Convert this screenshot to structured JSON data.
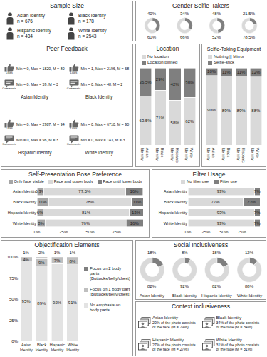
{
  "chart_data": [
    {
      "type": "pie",
      "title": "Gender Selfie-Takers",
      "series": [
        {
          "color": "#7f7f7f",
          "values": [
            40,
            34,
            48,
            21.5
          ],
          "value_labels": [
            "40%",
            "34%",
            "48%",
            "21.5%"
          ]
        },
        {
          "color": "#d9d9d9",
          "values": [
            60,
            66,
            52,
            78.5
          ],
          "value_labels": [
            "60%",
            "66%",
            "52%",
            "78.5%"
          ]
        }
      ]
    },
    {
      "type": "bar",
      "title": "Location",
      "stacked": true,
      "data_labels": true,
      "tick_labels": "x",
      "categories": [
        "Asian Identity",
        "Black Identity",
        "Hispanic Identity",
        "White Identity"
      ],
      "ylim": [
        0,
        100
      ],
      "series": [
        {
          "name": "No location",
          "color": "#d9d9d9",
          "values": [
            63.5,
            71,
            58,
            62
          ],
          "value_labels": [
            "63.5%",
            "71%",
            "58%",
            "62%"
          ]
        },
        {
          "name": "Location pinned",
          "color": "#7f7f7f",
          "values": [
            36.5,
            29,
            42,
            38
          ],
          "value_labels": [
            "36.5%",
            "29%",
            "42%",
            "38%"
          ]
        }
      ]
    },
    {
      "type": "bar",
      "title": "Selfie-Taking Equipment",
      "stacked": true,
      "data_labels": true,
      "tick_labels": "x",
      "categories": [
        "Asian Identity",
        "Black Identity",
        "Hispanic Identity",
        "White Identity"
      ],
      "ylim": [
        0,
        100
      ],
      "series": [
        {
          "name": "Nothing || Mirror",
          "color": "#d9d9d9",
          "values": [
            90,
            89,
            89,
            88
          ],
          "value_labels": [
            "90%",
            "89%",
            "89%",
            "88%"
          ]
        },
        {
          "name": "Selfie-stick",
          "color": "#7f7f7f",
          "values": [
            10,
            11,
            11,
            12
          ],
          "value_labels": [
            "10%",
            "11%",
            "11%",
            "12%"
          ]
        }
      ]
    },
    {
      "type": "bar",
      "title": "Self-Presentation Pose Preference",
      "orientation": "horizontal",
      "stacked": true,
      "data_labels": true,
      "categories": [
        "Asian Identity",
        "Black Identity",
        "Hispanic Identity",
        "White Identity"
      ],
      "xlim": [
        0,
        100
      ],
      "xticks": [
        {
          "value": 0,
          "label": "0%"
        },
        {
          "value": 25,
          "label": "25%"
        },
        {
          "value": 50,
          "label": "50%"
        },
        {
          "value": 75,
          "label": "75%"
        },
        {
          "value": 100,
          "label": "100%"
        }
      ],
      "series": [
        {
          "name": "Only face visible",
          "color": "#a6a6a6",
          "values": [
            6.3,
            11,
            6,
            8
          ],
          "value_labels": [
            "6.3%",
            "11%",
            "6%",
            "8%"
          ]
        },
        {
          "name": "Face and upper body",
          "color": "#d9d9d9",
          "values": [
            77.5,
            78,
            81,
            76
          ],
          "value_labels": [
            "77.5%",
            "78%",
            "81%",
            "76%"
          ]
        },
        {
          "name": "Face until lower body",
          "color": "#7f7f7f",
          "values": [
            16,
            11,
            13,
            16
          ],
          "value_labels": [
            "16%",
            "11%",
            "13%",
            "16%"
          ]
        }
      ]
    },
    {
      "type": "bar",
      "title": "Filter Usage",
      "orientation": "horizontal",
      "stacked": true,
      "data_labels": true,
      "categories": [
        "Asian Identity",
        "Black Identity",
        "Hispanic Identity",
        "White Identity"
      ],
      "xlim": [
        0,
        100
      ],
      "xticks": [
        {
          "value": 0,
          "label": "0%"
        },
        {
          "value": 25,
          "label": "25%"
        },
        {
          "value": 50,
          "label": "50%"
        },
        {
          "value": 75,
          "label": "75%"
        },
        {
          "value": 100,
          "label": "100%"
        }
      ],
      "series": [
        {
          "name": "No filter use",
          "color": "#d9d9d9",
          "values": [
            93,
            77,
            93,
            93
          ],
          "value_labels": [
            "93%",
            "77%",
            "93%",
            "93%"
          ]
        },
        {
          "name": "Filter use",
          "color": "#7f7f7f",
          "values": [
            7,
            23,
            7,
            7
          ],
          "value_labels": [
            "7%",
            "23%",
            "7%",
            "7%"
          ]
        }
      ]
    },
    {
      "type": "bar",
      "title": "Objectification Elements",
      "stacked": true,
      "data_labels": true,
      "categories": [
        "Asian Identity",
        "Black Identity",
        "Hispanic Identity",
        "White Identity"
      ],
      "ylim": [
        0,
        100
      ],
      "yticks": [
        {
          "value": 0,
          "label": "0%"
        },
        {
          "value": 25,
          "label": "25%"
        },
        {
          "value": 50,
          "label": "50%"
        },
        {
          "value": 75,
          "label": "75%"
        },
        {
          "value": 100,
          "label": "100%"
        }
      ],
      "series": [
        {
          "name": "No emphasis on body parts",
          "color": "#e3e3e3",
          "values": [
            95,
            89,
            92,
            91
          ],
          "value_labels": [
            "95%",
            "89%",
            "92%",
            "91%"
          ]
        },
        {
          "name": "Focus on 1 body part (Buttocks/belly/chest)",
          "color": "#bfbfbf",
          "values": [
            4,
            9,
            7,
            8
          ],
          "value_labels": [
            "4%",
            "9%",
            "7%",
            "8%"
          ]
        },
        {
          "name": "Focus on 2 body parts (Buttocks/belly/chest)",
          "color": "#7f7f7f",
          "values": [
            1,
            2,
            1,
            1
          ],
          "value_labels": [
            "1%",
            "2%",
            "1%",
            "1%"
          ]
        }
      ]
    },
    {
      "type": "pie",
      "title": "Social Inclusiveness",
      "categories": [
        "Asian Identity",
        "Black Identity",
        "Hispanic Identity",
        "White Identity"
      ],
      "series": [
        {
          "color": "#7f7f7f",
          "values": [
            18,
            8,
            18,
            12
          ],
          "value_labels": [
            "18%",
            "8%",
            "18%",
            "12%"
          ]
        },
        {
          "color": "#d9d9d9",
          "values": [
            82,
            92,
            82,
            88
          ],
          "value_labels": [
            "82%",
            "92%",
            "82%",
            "88%"
          ]
        }
      ]
    }
  ],
  "sample_size": {
    "title": "Sample Size",
    "groups": [
      {
        "name": "Asian Identity",
        "n": "n = 676"
      },
      {
        "name": "Black Identity",
        "n": "n = 178"
      },
      {
        "name": "Hispanic Identity",
        "n": "n = 484"
      },
      {
        "name": "White Identity",
        "n": "n = 2543"
      }
    ]
  },
  "peer_feedback": {
    "title": "Peer Feedback",
    "likes_label": "Likes",
    "comments_label": "Comments",
    "groups": [
      {
        "name": "Asian Identity",
        "likes": "Min = 0, Max = 1820, M = 80",
        "comments": "Min = 0, Max = 59, M = 3"
      },
      {
        "name": "Black Identity",
        "likes": "Min = 1, Max = 2196, M = 68",
        "comments": "Min = 0, Max = 48, M = 2"
      },
      {
        "name": "Hispanic Identity",
        "likes": "Min = 0, Max = 2987, M = 94",
        "comments": "Min = 0, Max = 96, M = 3"
      },
      {
        "name": "White Identity",
        "likes": "Min = 0, Max = 6710, M = 90",
        "comments": "Min = 0, Max = 143, M = 3"
      }
    ]
  },
  "context_inclusiveness": {
    "title": "Context inclusiveness",
    "groups": [
      {
        "name": "Asian Identity",
        "text": "29% of the photo consists of the face (M = 29%)"
      },
      {
        "name": "Black Identity",
        "text": "34% of the photo consists of the face (M = 34%)"
      },
      {
        "name": "Hispanic Identity",
        "text": "27% of the photo consists of the face (M = 27%)"
      },
      {
        "name": "White Identity",
        "text": "31% of the photo consists of the face (M = 31%)"
      }
    ]
  }
}
